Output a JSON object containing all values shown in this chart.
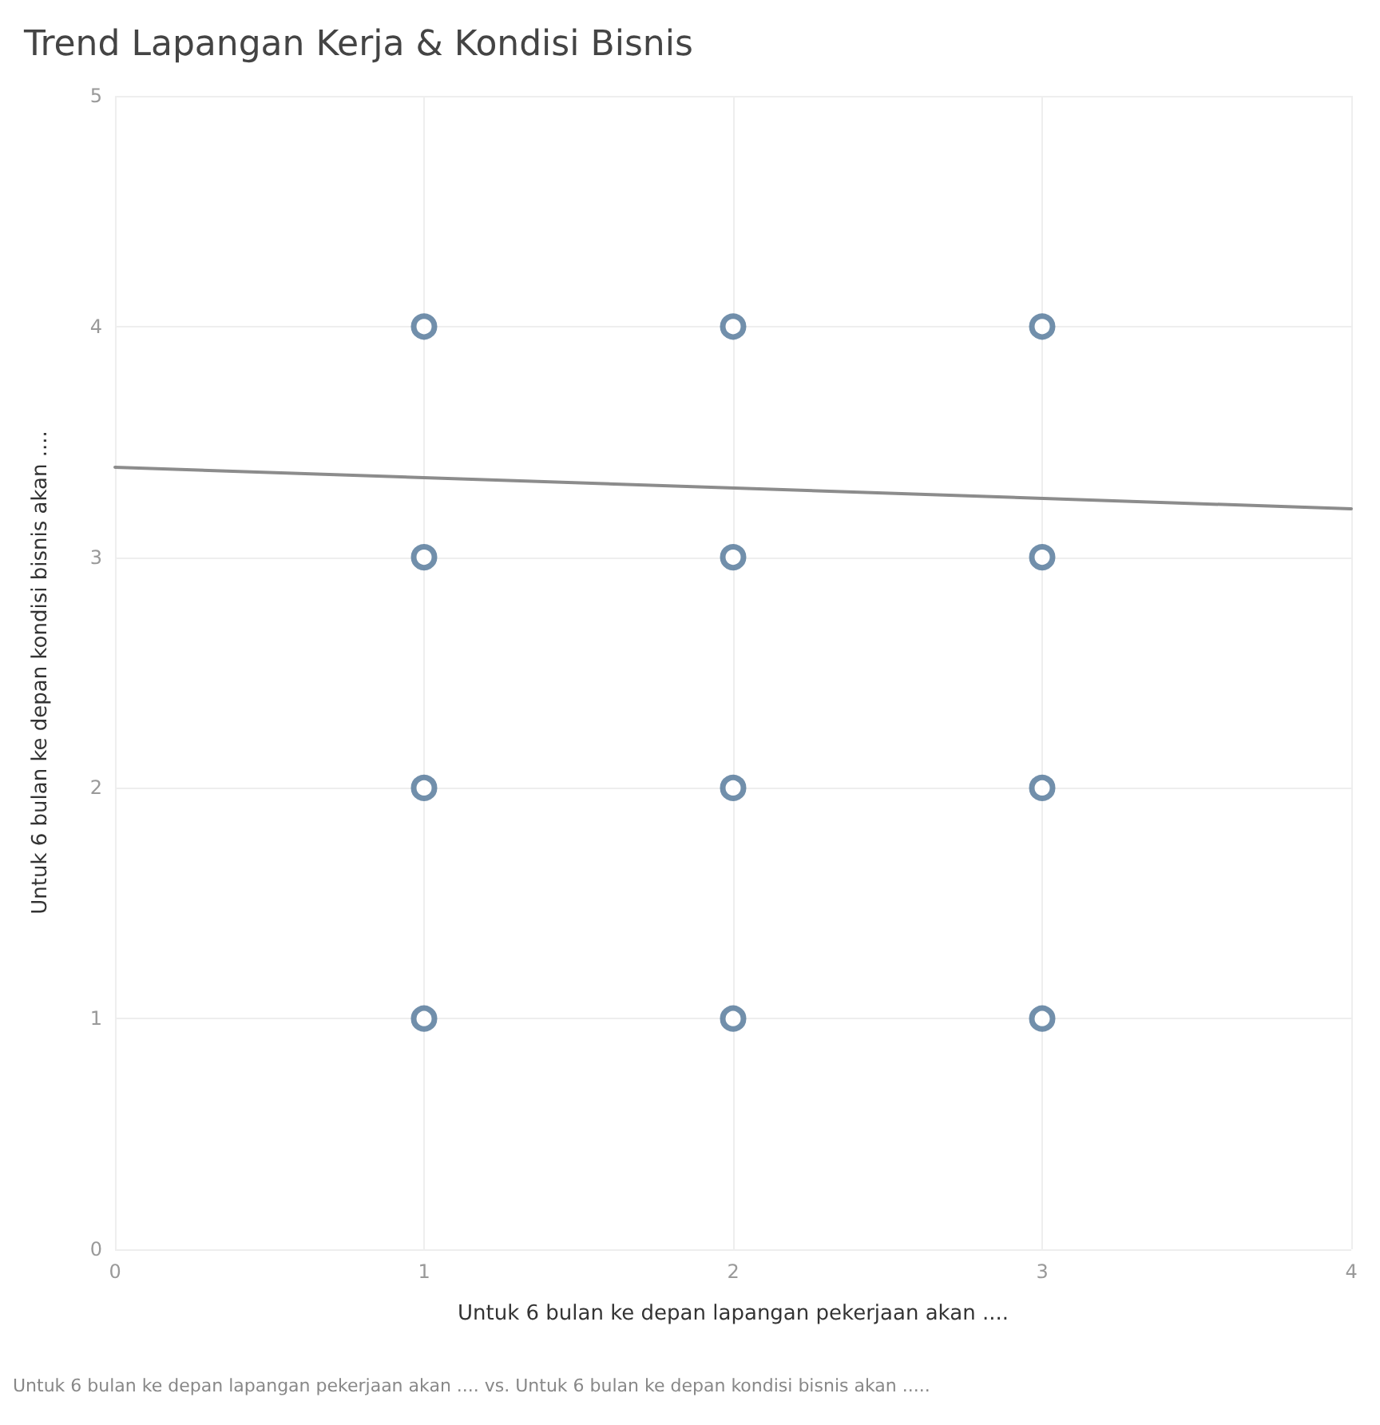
{
  "chart_data": {
    "type": "scatter",
    "title": "Trend Lapangan Kerja & Kondisi Bisnis",
    "xlabel": "Untuk 6 bulan ke depan lapangan pekerjaan akan ....",
    "ylabel": "Untuk 6 bulan ke depan kondisi bisnis akan ....",
    "annotations": [
      "Untuk 6 bulan ke depan lapangan pekerjaan akan .... vs. Untuk 6 bulan ke depan kondisi bisnis akan ....."
    ],
    "series": [
      {
        "color": "#4e7396",
        "x": [
          1,
          1,
          1,
          1,
          2,
          2,
          2,
          2,
          3,
          3,
          3,
          3
        ],
        "values": [
          1,
          2,
          3,
          4,
          1,
          2,
          3,
          4,
          1,
          2,
          3,
          4
        ]
      },
      {
        "type": "line",
        "marker": "none",
        "color": "#8c8c8c",
        "x": [
          0,
          4
        ],
        "values": [
          3.39,
          3.21
        ]
      }
    ],
    "xlim": [
      0,
      4
    ],
    "xticks": [
      0,
      1,
      2,
      3,
      4
    ],
    "ylim": [
      0,
      5
    ],
    "yticks": [
      0,
      1,
      2,
      3,
      4,
      5
    ],
    "grid": true,
    "marker": "circle"
  }
}
